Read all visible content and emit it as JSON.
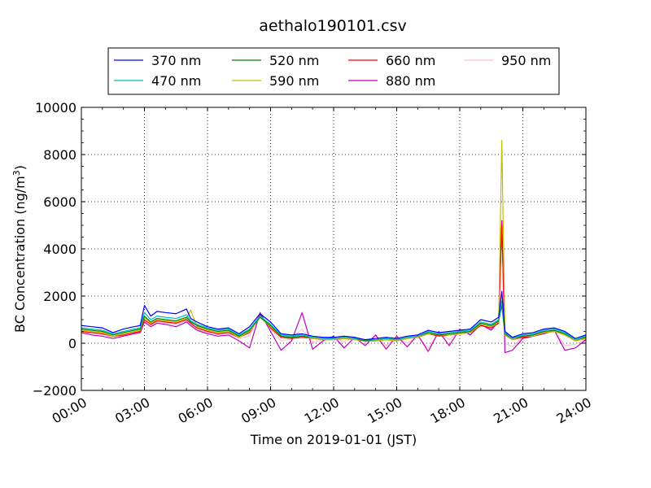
{
  "chart_data": {
    "type": "line",
    "title": "aethalo190101.csv",
    "xlabel": "Time on 2019-01-01 (JST)",
    "ylabel": "BC Concentration (ng/m",
    "ylabel_sup": "3",
    "ylabel_close": ")",
    "xlim": [
      0,
      24
    ],
    "ylim": [
      -2000,
      10000
    ],
    "x_ticks": [
      0,
      3,
      6,
      9,
      12,
      15,
      18,
      21,
      24
    ],
    "x_tick_labels": [
      "00:00",
      "03:00",
      "06:00",
      "09:00",
      "12:00",
      "15:00",
      "18:00",
      "21:00",
      "24:00"
    ],
    "y_ticks": [
      -2000,
      0,
      2000,
      4000,
      6000,
      8000,
      10000
    ],
    "y_tick_labels": [
      "−2000",
      "0",
      "2000",
      "4000",
      "6000",
      "8000",
      "10000"
    ],
    "grid": true,
    "legend_position": "top-center",
    "x": [
      0,
      0.5,
      1,
      1.5,
      2,
      2.5,
      2.8,
      3,
      3.3,
      3.6,
      4,
      4.5,
      5,
      5.2,
      5.5,
      6,
      6.5,
      7,
      7.5,
      8,
      8.5,
      9,
      9.5,
      10,
      10.5,
      11,
      11.5,
      12,
      12.5,
      13,
      13.5,
      14,
      14.5,
      15,
      15.5,
      16,
      16.5,
      17,
      17.5,
      18,
      18.5,
      19,
      19.5,
      19.85,
      20,
      20.15,
      20.5,
      21,
      21.5,
      22,
      22.5,
      23,
      23.5,
      24
    ],
    "series": [
      {
        "name": "370 nm",
        "color": "#0000ff",
        "values": [
          750,
          700,
          650,
          450,
          600,
          700,
          750,
          1600,
          1150,
          1350,
          1300,
          1250,
          1450,
          1050,
          900,
          700,
          600,
          650,
          400,
          700,
          1250,
          900,
          400,
          350,
          400,
          300,
          250,
          250,
          300,
          250,
          150,
          200,
          250,
          200,
          300,
          350,
          550,
          450,
          500,
          550,
          600,
          1000,
          900,
          1100,
          2200,
          500,
          250,
          400,
          450,
          600,
          650,
          500,
          200,
          350
        ]
      },
      {
        "name": "470 nm",
        "color": "#00bfbf",
        "values": [
          650,
          600,
          550,
          400,
          500,
          600,
          650,
          1300,
          1000,
          1150,
          1100,
          1050,
          1200,
          950,
          800,
          650,
          550,
          600,
          350,
          600,
          1150,
          800,
          350,
          300,
          350,
          250,
          200,
          200,
          250,
          200,
          150,
          150,
          200,
          150,
          250,
          300,
          500,
          400,
          450,
          500,
          550,
          900,
          800,
          1000,
          1800,
          450,
          200,
          350,
          400,
          550,
          600,
          450,
          150,
          300
        ]
      },
      {
        "name": "520 nm",
        "color": "#008000",
        "values": [
          600,
          550,
          500,
          350,
          450,
          550,
          600,
          1150,
          900,
          1050,
          1000,
          950,
          1100,
          900,
          750,
          600,
          500,
          550,
          300,
          550,
          1100,
          750,
          300,
          250,
          300,
          250,
          200,
          200,
          250,
          200,
          100,
          150,
          200,
          150,
          250,
          300,
          450,
          350,
          400,
          450,
          500,
          850,
          750,
          950,
          1600,
          400,
          200,
          300,
          350,
          500,
          550,
          400,
          150,
          250
        ]
      },
      {
        "name": "590 nm",
        "color": "#bfbf00",
        "values": [
          550,
          500,
          450,
          300,
          400,
          500,
          550,
          1100,
          850,
          1000,
          950,
          900,
          1050,
          1400,
          700,
          550,
          450,
          500,
          250,
          500,
          1100,
          700,
          300,
          250,
          300,
          200,
          150,
          150,
          200,
          150,
          100,
          100,
          150,
          100,
          200,
          250,
          400,
          350,
          350,
          400,
          450,
          800,
          700,
          900,
          8600,
          350,
          150,
          300,
          300,
          450,
          500,
          350,
          100,
          200
        ]
      },
      {
        "name": "660 nm",
        "color": "#ff0000",
        "values": [
          500,
          450,
          400,
          300,
          350,
          450,
          500,
          1000,
          800,
          950,
          900,
          850,
          1000,
          850,
          650,
          500,
          400,
          450,
          250,
          450,
          1200,
          650,
          250,
          200,
          250,
          200,
          150,
          150,
          200,
          150,
          100,
          100,
          150,
          100,
          200,
          250,
          400,
          300,
          350,
          400,
          450,
          750,
          650,
          850,
          5000,
          350,
          150,
          250,
          300,
          450,
          500,
          350,
          100,
          200
        ]
      },
      {
        "name": "880 nm",
        "color": "#bf00bf",
        "values": [
          450,
          350,
          300,
          200,
          300,
          400,
          450,
          900,
          700,
          850,
          800,
          700,
          900,
          750,
          550,
          400,
          300,
          350,
          100,
          -200,
          1300,
          500,
          -300,
          100,
          1300,
          -250,
          100,
          300,
          -200,
          250,
          -100,
          350,
          -250,
          300,
          -150,
          350,
          -350,
          500,
          -100,
          600,
          350,
          800,
          550,
          950,
          5200,
          -400,
          -300,
          200,
          300,
          400,
          550,
          -300,
          -200,
          150
        ]
      },
      {
        "name": "950 nm",
        "color": "#ffc0cb",
        "values": [
          500,
          420,
          380,
          260,
          340,
          430,
          480,
          950,
          760,
          900,
          860,
          800,
          950,
          800,
          600,
          450,
          360,
          420,
          200,
          300,
          1250,
          600,
          100,
          200,
          600,
          50,
          150,
          250,
          50,
          250,
          50,
          300,
          -100,
          250,
          0,
          300,
          -200,
          450,
          150,
          550,
          400,
          780,
          600,
          900,
          4800,
          0,
          -150,
          250,
          320,
          430,
          520,
          -100,
          -50,
          180
        ]
      }
    ]
  }
}
